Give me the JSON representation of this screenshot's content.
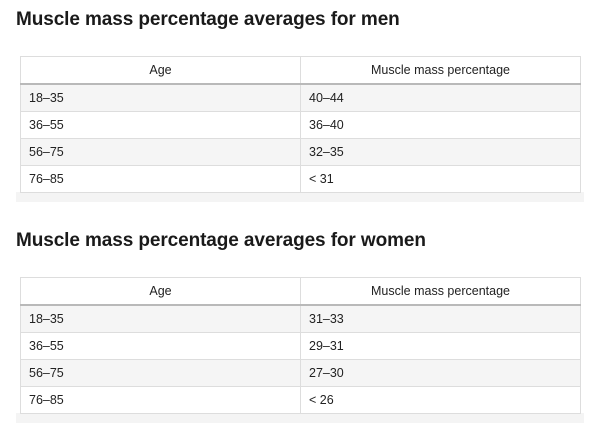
{
  "men": {
    "title": "Muscle mass percentage averages for men",
    "headers": [
      "Age",
      "Muscle mass percentage"
    ],
    "rows": [
      [
        "18–35",
        "40–44"
      ],
      [
        "36–55",
        "36–40"
      ],
      [
        "56–75",
        "32–35"
      ],
      [
        "76–85",
        "< 31"
      ]
    ]
  },
  "women": {
    "title": "Muscle mass percentage averages for women",
    "headers": [
      "Age",
      "Muscle mass percentage"
    ],
    "rows": [
      [
        "18–35",
        "31–33"
      ],
      [
        "36–55",
        "29–31"
      ],
      [
        "56–75",
        "27–30"
      ],
      [
        "76–85",
        "< 26"
      ]
    ]
  }
}
